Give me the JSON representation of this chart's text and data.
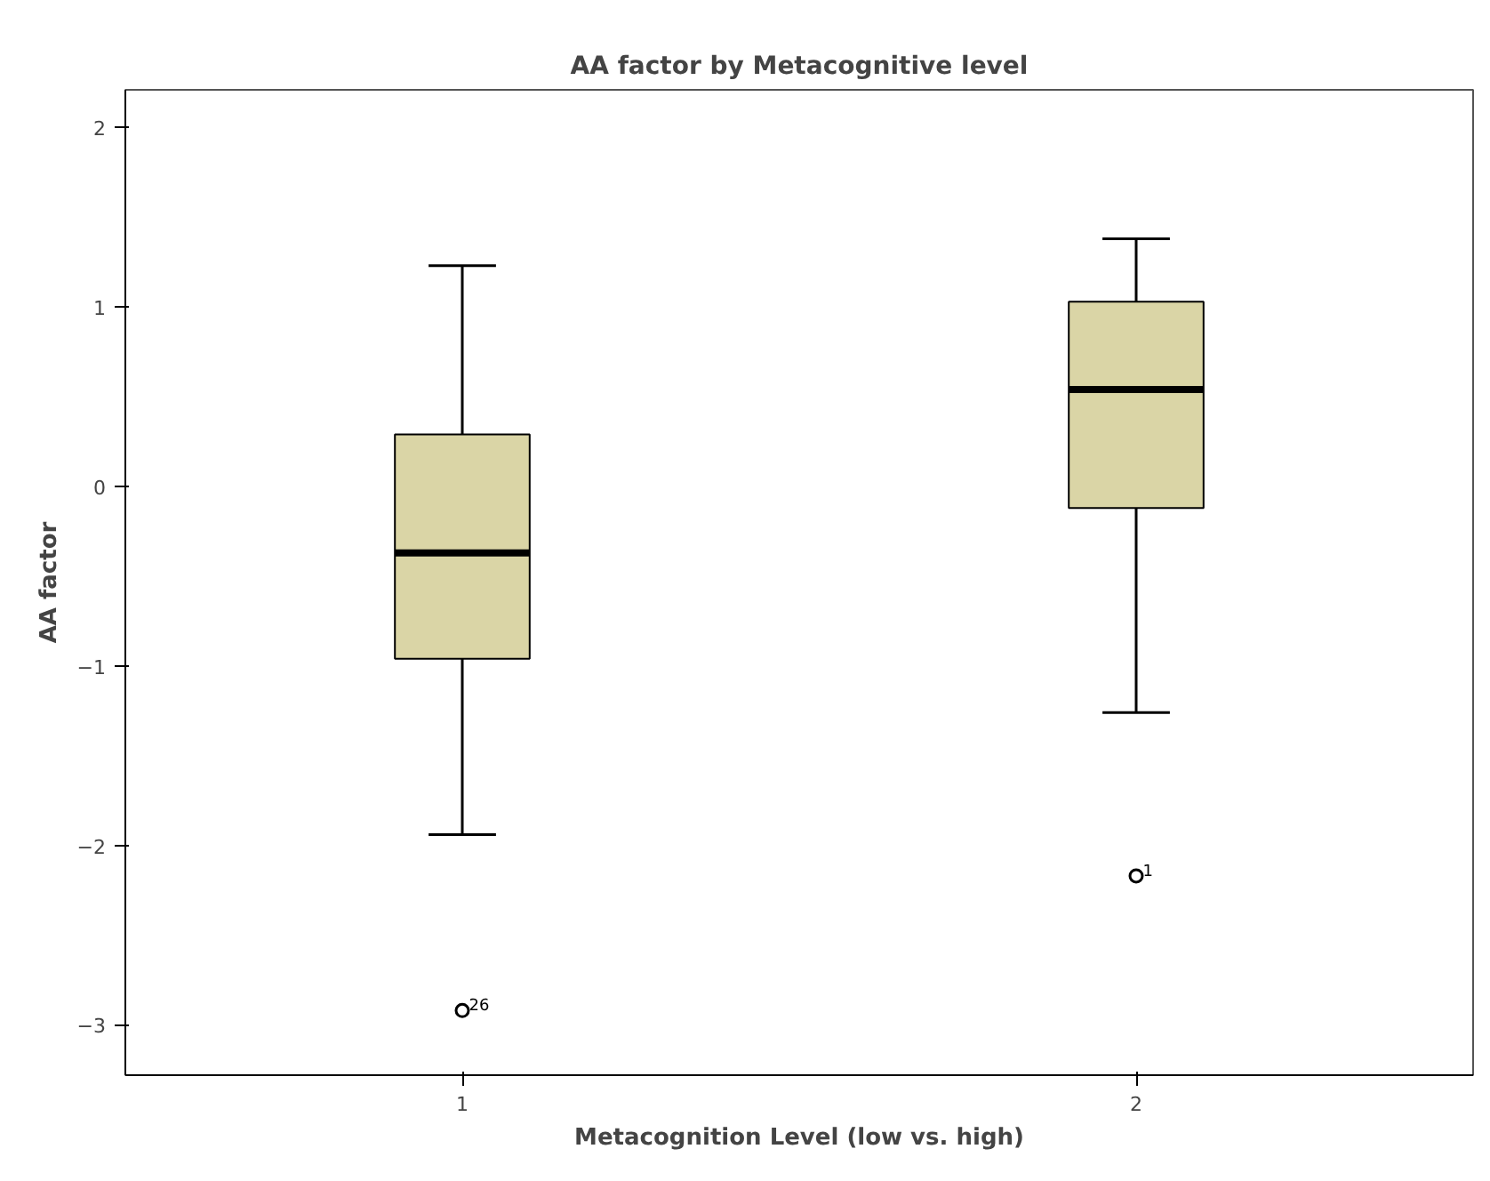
{
  "chart_data": {
    "type": "box",
    "title": "AA factor by Metacognitive level",
    "xlabel": "Metacognition Level (low vs. high)",
    "ylabel": "AA factor",
    "categories": [
      "1",
      "2"
    ],
    "color": "#dad5a6",
    "boxes": [
      {
        "low": -1.94,
        "q1": -0.96,
        "median": -0.37,
        "q3": 0.29,
        "high": 1.23,
        "outliers": [
          -2.92
        ]
      },
      {
        "low": -1.26,
        "q1": -0.12,
        "median": 0.54,
        "q3": 1.03,
        "high": 1.38,
        "outliers": [
          -2.17
        ]
      }
    ],
    "ylim": [
      -3.28,
      2.21
    ],
    "yticks": [
      -3,
      -2,
      -1,
      0,
      1,
      2
    ],
    "grid": false,
    "marker": "circle",
    "annotations": [
      "26",
      "1"
    ]
  }
}
